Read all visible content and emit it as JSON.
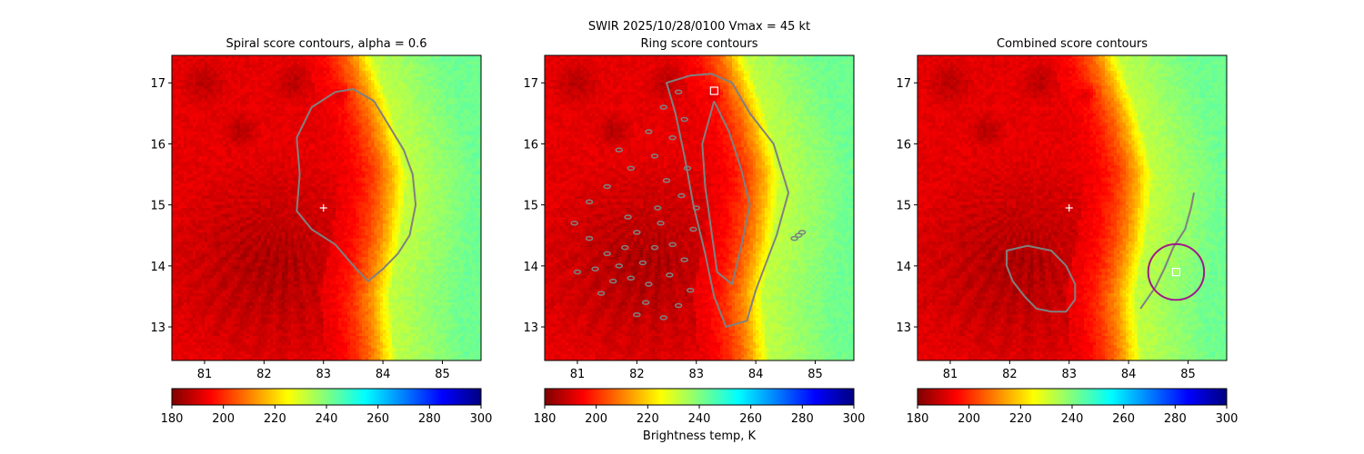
{
  "chart_data": {
    "type": "heatmap",
    "suptitle_line1": "SWIR  2025/10/28/0100    Vmax = 45 kt",
    "colorbar": {
      "label": "Brightness temp, K",
      "range": [
        180,
        300
      ],
      "ticks": [
        180,
        200,
        220,
        240,
        260,
        280,
        300
      ],
      "colormap": "jet_r"
    },
    "axes": {
      "xlim": [
        80.45,
        85.65
      ],
      "ylim": [
        12.45,
        17.45
      ],
      "xticks": [
        81,
        82,
        83,
        84,
        85
      ],
      "yticks": [
        13,
        14,
        15,
        16,
        17
      ]
    },
    "field": {
      "cold_core": {
        "lon": 82.1,
        "lat": 14.0,
        "temp": 185
      },
      "warm_edge_lon_by_lat": [
        [
          12.45,
          83.95
        ],
        [
          13.5,
          83.85
        ],
        [
          14.5,
          84.05
        ],
        [
          15.5,
          84.15
        ],
        [
          16.5,
          83.9
        ],
        [
          17.45,
          83.55
        ]
      ],
      "outer_temp": 232,
      "far_temp": 242
    },
    "panels": [
      {
        "title": "Spiral score contours, alpha =  0.6",
        "center_marker": {
          "lon": 83.0,
          "lat": 14.95,
          "symbol": "+"
        },
        "contours": [
          {
            "name": "spiral-contour",
            "points": [
              [
                83.5,
                16.9
              ],
              [
                83.85,
                16.7
              ],
              [
                84.1,
                16.3
              ],
              [
                84.35,
                15.9
              ],
              [
                84.5,
                15.5
              ],
              [
                84.55,
                15.0
              ],
              [
                84.45,
                14.5
              ],
              [
                84.25,
                14.2
              ],
              [
                84.0,
                13.95
              ],
              [
                83.75,
                13.75
              ],
              [
                83.55,
                13.95
              ],
              [
                83.2,
                14.35
              ],
              [
                82.8,
                14.6
              ],
              [
                82.55,
                14.9
              ],
              [
                82.6,
                15.5
              ],
              [
                82.55,
                16.1
              ],
              [
                82.8,
                16.6
              ],
              [
                83.2,
                16.85
              ],
              [
                83.5,
                16.9
              ]
            ],
            "closed": true,
            "color": "#808080"
          }
        ]
      },
      {
        "title": "Ring score contours",
        "square_marker": {
          "lon": 83.3,
          "lat": 16.87
        },
        "contours": [
          {
            "name": "ring-contour-band",
            "points": [
              [
                83.25,
                17.15
              ],
              [
                83.6,
                17.0
              ],
              [
                83.9,
                16.5
              ],
              [
                84.3,
                16.0
              ],
              [
                84.55,
                15.2
              ],
              [
                84.35,
                14.5
              ],
              [
                84.0,
                13.6
              ],
              [
                83.85,
                13.1
              ],
              [
                83.5,
                13.0
              ],
              [
                83.3,
                13.5
              ],
              [
                83.15,
                14.2
              ],
              [
                82.95,
                15.0
              ],
              [
                82.8,
                15.8
              ],
              [
                82.65,
                16.5
              ],
              [
                82.5,
                17.0
              ],
              [
                82.9,
                17.12
              ],
              [
                83.25,
                17.15
              ]
            ],
            "closed": true,
            "color": "#808080"
          },
          {
            "name": "ring-contour-inner",
            "points": [
              [
                83.3,
                16.7
              ],
              [
                83.55,
                16.2
              ],
              [
                83.75,
                15.6
              ],
              [
                83.9,
                15.0
              ],
              [
                83.75,
                14.3
              ],
              [
                83.6,
                13.7
              ],
              [
                83.35,
                13.9
              ],
              [
                83.25,
                14.6
              ],
              [
                83.15,
                15.3
              ],
              [
                83.1,
                16.0
              ],
              [
                83.3,
                16.7
              ]
            ],
            "closed": false,
            "color": "#808080"
          }
        ],
        "speckles": [
          [
            81.2,
            14.45
          ],
          [
            81.5,
            14.2
          ],
          [
            81.7,
            14.0
          ],
          [
            81.9,
            13.8
          ],
          [
            82.0,
            14.55
          ],
          [
            82.3,
            14.3
          ],
          [
            82.1,
            14.05
          ],
          [
            81.6,
            13.75
          ],
          [
            81.3,
            13.95
          ],
          [
            82.4,
            14.7
          ],
          [
            82.6,
            14.35
          ],
          [
            82.2,
            13.7
          ],
          [
            82.55,
            13.85
          ],
          [
            82.8,
            14.1
          ],
          [
            82.95,
            14.6
          ],
          [
            82.9,
            13.6
          ],
          [
            82.7,
            13.35
          ],
          [
            82.45,
            13.15
          ],
          [
            82.15,
            13.4
          ],
          [
            83.0,
            14.95
          ],
          [
            82.75,
            15.15
          ],
          [
            82.5,
            15.4
          ],
          [
            81.9,
            15.6
          ],
          [
            81.5,
            15.3
          ],
          [
            81.2,
            15.05
          ],
          [
            81.8,
            14.3
          ],
          [
            82.0,
            13.2
          ],
          [
            81.4,
            13.55
          ],
          [
            81.0,
            13.9
          ],
          [
            80.95,
            14.7
          ],
          [
            82.3,
            15.8
          ],
          [
            82.6,
            16.1
          ],
          [
            82.8,
            16.4
          ],
          [
            82.45,
            16.6
          ],
          [
            82.7,
            16.85
          ],
          [
            82.2,
            16.2
          ],
          [
            81.7,
            15.9
          ],
          [
            82.85,
            15.6
          ],
          [
            82.35,
            14.95
          ],
          [
            81.85,
            14.8
          ],
          [
            84.65,
            14.45
          ],
          [
            84.72,
            14.5
          ],
          [
            84.78,
            14.55
          ]
        ]
      },
      {
        "title": "Combined score contours",
        "center_marker": {
          "lon": 83.0,
          "lat": 14.95,
          "symbol": "+"
        },
        "square_marker": {
          "lon": 84.8,
          "lat": 13.9
        },
        "circle": {
          "lon": 84.8,
          "lat": 13.9,
          "radius_deg": 0.47,
          "color": "#a0188c"
        },
        "contours": [
          {
            "name": "combined-contour-blob",
            "points": [
              [
                81.95,
                14.25
              ],
              [
                82.3,
                14.33
              ],
              [
                82.7,
                14.25
              ],
              [
                82.95,
                14.0
              ],
              [
                83.1,
                13.7
              ],
              [
                83.1,
                13.45
              ],
              [
                82.95,
                13.25
              ],
              [
                82.7,
                13.25
              ],
              [
                82.45,
                13.3
              ],
              [
                82.25,
                13.5
              ],
              [
                82.05,
                13.75
              ],
              [
                81.95,
                14.0
              ],
              [
                81.95,
                14.25
              ]
            ],
            "closed": true,
            "color": "#808080"
          },
          {
            "name": "combined-contour-line",
            "points": [
              [
                84.2,
                13.3
              ],
              [
                84.45,
                13.65
              ],
              [
                84.6,
                13.95
              ],
              [
                84.75,
                14.3
              ],
              [
                84.95,
                14.6
              ],
              [
                85.05,
                14.95
              ],
              [
                85.1,
                15.2
              ]
            ],
            "closed": false,
            "color": "#808080"
          }
        ]
      }
    ]
  }
}
